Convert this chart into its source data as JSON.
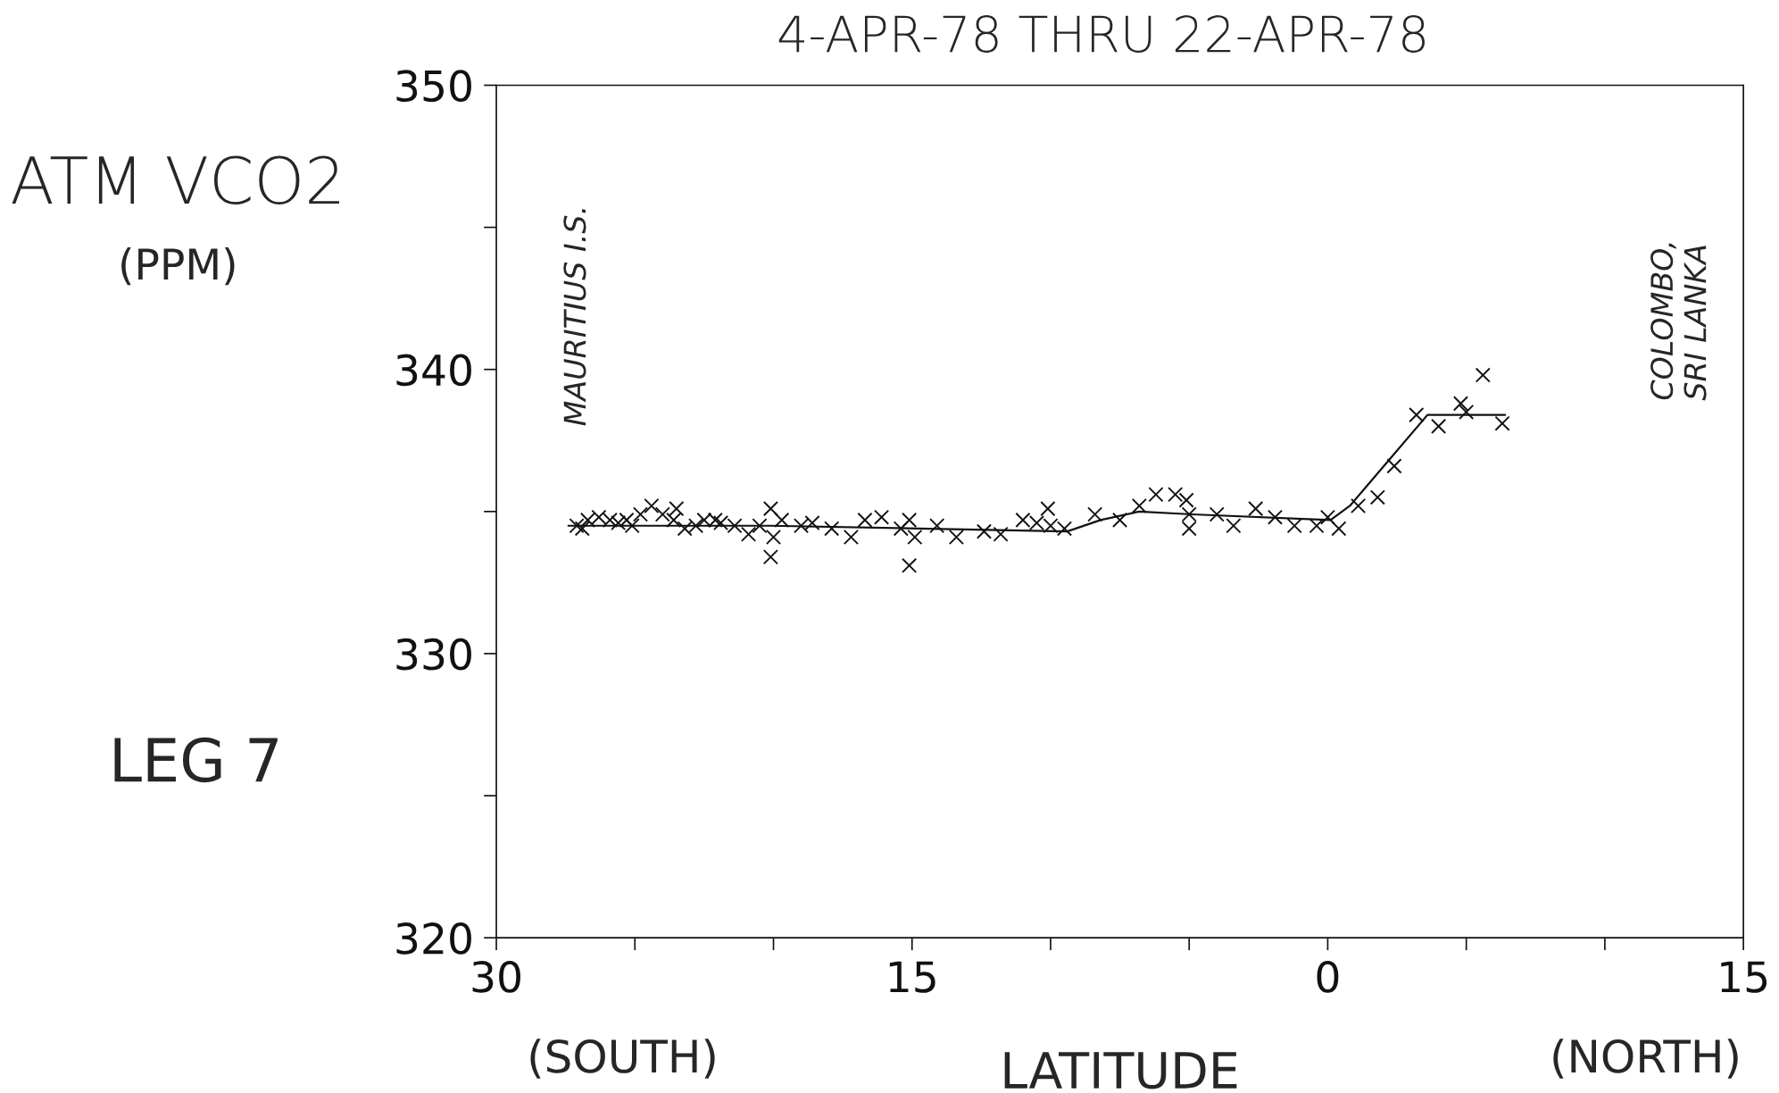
{
  "chart_data": {
    "type": "scatter",
    "title": "4-APR-78 THRU 22-APR-78",
    "xlabel": "LATITUDE",
    "ylabel": "ATM VCO2\n(PPM)",
    "annotations": [
      "MAURITIUS I.S.",
      "COLOMBO,\nSRI LANKA",
      "LEG 7",
      "(SOUTH)",
      "(NORTH)"
    ],
    "xlim": [
      -30,
      15
    ],
    "xticks": [
      {
        "value": -30,
        "label": "30"
      },
      {
        "value": -25,
        "label": null
      },
      {
        "value": -20,
        "label": null
      },
      {
        "value": -15,
        "label": "15"
      },
      {
        "value": -10,
        "label": null
      },
      {
        "value": -5,
        "label": null
      },
      {
        "value": 0,
        "label": "0"
      },
      {
        "value": 5,
        "label": null
      },
      {
        "value": 10,
        "label": null
      },
      {
        "value": 15,
        "label": "15"
      }
    ],
    "ylim": [
      320,
      350
    ],
    "yticks": [
      320,
      {
        "value": 325,
        "label": null
      },
      330,
      {
        "value": 335,
        "label": null
      },
      340,
      {
        "value": 345,
        "label": null
      },
      350
    ],
    "grid": false,
    "legend": false,
    "series": [
      {
        "type": "scatter",
        "marker": "cross",
        "color": "#111111",
        "x": [
          -27.1,
          -26.9,
          -26.7,
          -26.3,
          -25.9,
          -25.6,
          -25.3,
          -25.1,
          -24.8,
          -24.4,
          -24.0,
          -23.6,
          -23.5,
          -23.2,
          -22.8,
          -22.5,
          -22.1,
          -21.9,
          -21.4,
          -20.9,
          -20.5,
          -20.1,
          -20.1,
          -20.0,
          -19.7,
          -19.0,
          -18.6,
          -17.9,
          -17.2,
          -16.7,
          -16.1,
          -15.4,
          -15.1,
          -15.1,
          -14.9,
          -14.1,
          -13.4,
          -12.4,
          -11.8,
          -11.0,
          -10.5,
          -10.1,
          -10.0,
          -9.5,
          -8.4,
          -7.5,
          -6.8,
          -6.2,
          -5.5,
          -5.1,
          -5.0,
          -5.0,
          -4.0,
          -3.4,
          -2.6,
          -1.9,
          -1.2,
          -0.4,
          0.0,
          0.4,
          1.1,
          1.8,
          2.4,
          3.2,
          4.0,
          4.8,
          5.0,
          5.6,
          6.3
        ],
        "values": [
          334.5,
          334.4,
          334.7,
          334.8,
          334.7,
          334.6,
          334.7,
          334.5,
          334.9,
          335.2,
          334.9,
          334.7,
          335.1,
          334.4,
          334.5,
          334.7,
          334.7,
          334.6,
          334.5,
          334.2,
          334.5,
          335.1,
          333.4,
          334.1,
          334.7,
          334.5,
          334.6,
          334.4,
          334.1,
          334.7,
          334.8,
          334.4,
          334.7,
          333.1,
          334.1,
          334.5,
          334.1,
          334.3,
          334.2,
          334.7,
          334.6,
          335.1,
          334.5,
          334.4,
          334.9,
          334.7,
          335.2,
          335.6,
          335.6,
          335.4,
          334.9,
          334.4,
          334.9,
          334.5,
          335.1,
          334.8,
          334.5,
          334.5,
          334.8,
          334.4,
          335.2,
          335.5,
          336.6,
          338.4,
          338.0,
          338.8,
          338.5,
          339.8,
          338.1
        ]
      },
      {
        "type": "line",
        "color": "#111111",
        "x": [
          -27.4,
          -20.1,
          -9.4,
          -8.2,
          -6.8,
          -4.9,
          0.1,
          0.8,
          3.6,
          6.4
        ],
        "values": [
          334.5,
          334.5,
          334.3,
          334.7,
          335.0,
          334.9,
          334.7,
          335.2,
          338.4,
          338.4
        ]
      }
    ]
  }
}
